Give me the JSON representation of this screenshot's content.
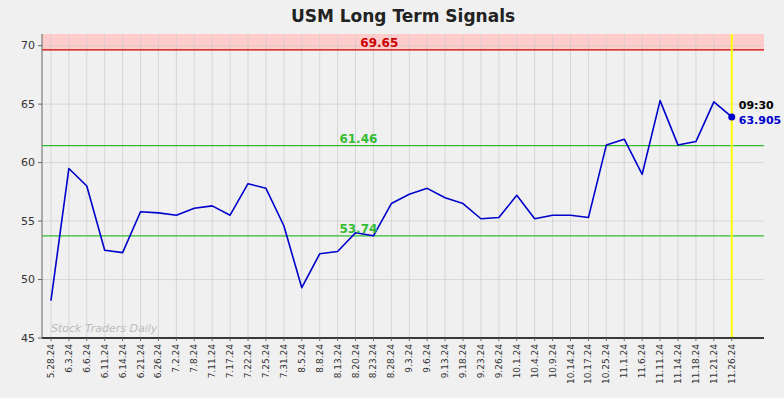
{
  "chart_data": {
    "type": "line",
    "title": "USM Long Term Signals",
    "categories": [
      "5.28.24",
      "6.3.24",
      "6.6.24",
      "6.11.24",
      "6.14.24",
      "6.21.24",
      "6.26.24",
      "7.2.24",
      "7.8.24",
      "7.11.24",
      "7.17.24",
      "7.22.24",
      "7.25.24",
      "7.31.24",
      "8.5.24",
      "8.8.24",
      "8.13.24",
      "8.20.24",
      "8.23.24",
      "8.28.24",
      "9.3.24",
      "9.6.24",
      "9.13.24",
      "9.18.24",
      "9.23.24",
      "9.26.24",
      "10.1.24",
      "10.4.24",
      "10.9.24",
      "10.14.24",
      "10.17.24",
      "10.25.24",
      "11.1.24",
      "11.6.24",
      "11.11.24",
      "11.14.24",
      "11.18.24",
      "11.21.24",
      "11.26.24"
    ],
    "values": [
      48.2,
      59.5,
      58.0,
      52.5,
      52.3,
      55.8,
      55.7,
      55.5,
      56.1,
      56.3,
      55.5,
      58.2,
      57.8,
      54.6,
      49.3,
      52.2,
      52.4,
      54.0,
      53.74,
      56.5,
      57.3,
      57.8,
      57.0,
      56.5,
      55.2,
      55.3,
      57.2,
      55.2,
      55.5,
      55.5,
      55.3,
      61.5,
      62.0,
      59.0,
      65.3,
      61.5,
      61.8,
      65.2,
      63.905
    ],
    "color": "#0000cc",
    "ylim": [
      45,
      71
    ],
    "yticks": [
      45,
      50,
      55,
      60,
      65,
      70
    ],
    "grid": true,
    "hlines": [
      {
        "value": 69.65,
        "color": "#cc0000",
        "band_color": "#ffcccc"
      },
      {
        "value": 61.46,
        "color": "#33bb33"
      },
      {
        "value": 53.74,
        "color": "#33bb33"
      }
    ],
    "vline": {
      "x": "11.26.24",
      "color": "#ffff00"
    },
    "current": {
      "x": "11.26.24",
      "value": 63.905,
      "time": "09:30",
      "color": "#0000cc"
    },
    "watermark": "Stock Traders Daily",
    "watermark_color": "#bbbbbb",
    "background": "#f0f0f0"
  }
}
